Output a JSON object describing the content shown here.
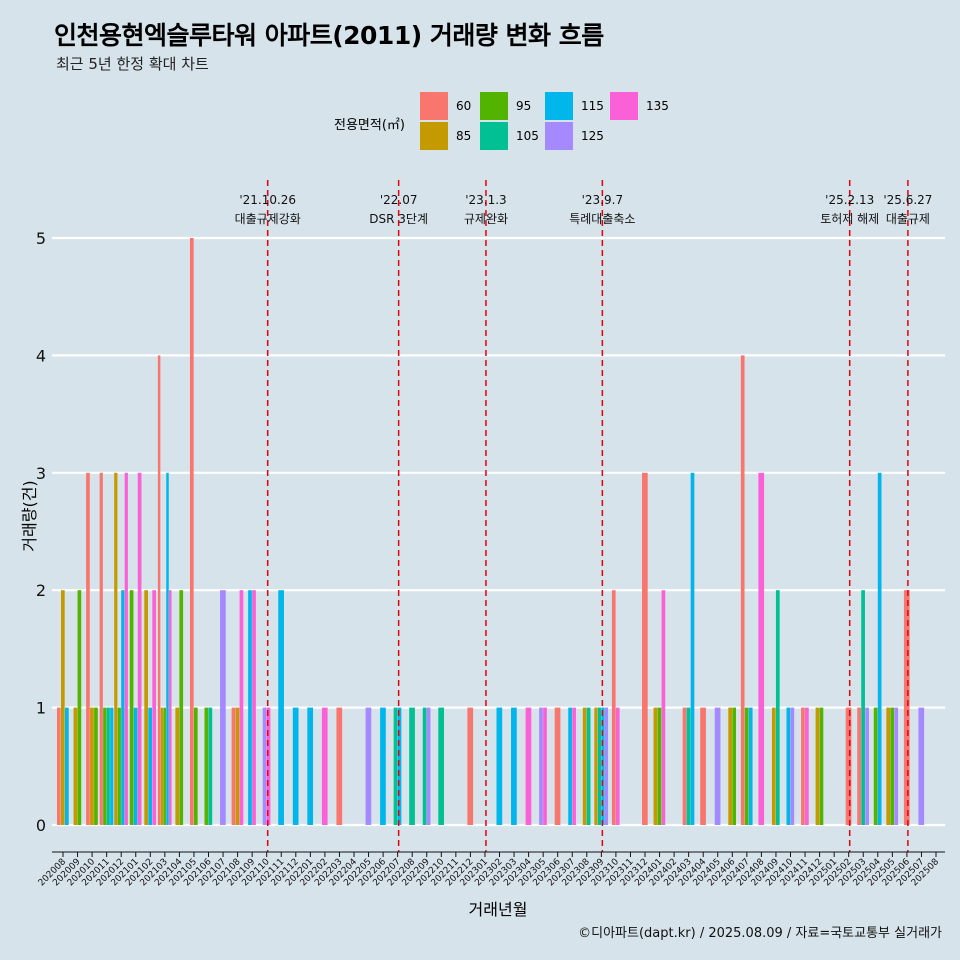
{
  "title": "인천용현엑슬루타워 아파트(2011) 거래량 변화 흐름",
  "subtitle": "최근 5년 한정 확대 차트",
  "caption": "©디아파트(dapt.kr) / 2025.08.09 / 자료=국토교통부 실거래가",
  "colors": {
    "60": "#f8766d",
    "85": "#c49a00",
    "95": "#53b400",
    "105": "#00c094",
    "115": "#00b6eb",
    "125": "#a58aff",
    "135": "#fb61d7",
    "event_line": "#e8000b",
    "background": "#d7e3ea"
  },
  "legend": {
    "title": "전용면적(㎡)",
    "items": [
      {
        "key": "60",
        "label": "60"
      },
      {
        "key": "85",
        "label": "85"
      },
      {
        "key": "95",
        "label": "95"
      },
      {
        "key": "105",
        "label": "105"
      },
      {
        "key": "115",
        "label": "115"
      },
      {
        "key": "125",
        "label": "125"
      },
      {
        "key": "135",
        "label": "135"
      }
    ]
  },
  "chart_data": {
    "type": "bar",
    "title": "인천용현엑슬루타워 아파트(2011) 거래량 변화 흐름",
    "subtitle": "최근 5년 한정 확대 차트",
    "xlabel": "거래년월",
    "ylabel": "거래량(건)",
    "ylim": [
      0,
      5
    ],
    "yticks": [
      0,
      1,
      2,
      3,
      4,
      5
    ],
    "categories": [
      "202008",
      "202009",
      "202010",
      "202011",
      "202012",
      "202101",
      "202102",
      "202103",
      "202104",
      "202105",
      "202106",
      "202107",
      "202108",
      "202109",
      "202110",
      "202111",
      "202112",
      "202201",
      "202202",
      "202203",
      "202204",
      "202205",
      "202206",
      "202207",
      "202208",
      "202209",
      "202210",
      "202211",
      "202212",
      "202301",
      "202302",
      "202303",
      "202304",
      "202305",
      "202306",
      "202307",
      "202308",
      "202309",
      "202310",
      "202311",
      "202312",
      "202401",
      "202402",
      "202403",
      "202404",
      "202405",
      "202406",
      "202407",
      "202408",
      "202409",
      "202410",
      "202411",
      "202412",
      "202501",
      "202502",
      "202503",
      "202504",
      "202505",
      "202506",
      "202507",
      "202508"
    ],
    "series": [
      {
        "name": "60",
        "values": [
          1,
          0,
          3,
          3,
          0,
          0,
          0,
          4,
          0,
          5,
          0,
          0,
          1,
          0,
          0,
          0,
          0,
          0,
          0,
          1,
          0,
          0,
          0,
          0,
          0,
          0,
          0,
          0,
          1,
          0,
          0,
          0,
          0,
          0,
          1,
          0,
          0,
          0,
          2,
          0,
          3,
          0,
          0,
          1,
          1,
          0,
          0,
          4,
          0,
          0,
          0,
          1,
          0,
          0,
          1,
          1,
          0,
          0,
          2,
          0,
          0
        ]
      },
      {
        "name": "85",
        "values": [
          2,
          1,
          1,
          0,
          3,
          0,
          2,
          1,
          1,
          0,
          0,
          0,
          1,
          0,
          0,
          0,
          0,
          0,
          0,
          0,
          0,
          0,
          0,
          0,
          0,
          0,
          0,
          0,
          0,
          0,
          0,
          0,
          0,
          0,
          0,
          0,
          1,
          1,
          0,
          0,
          0,
          1,
          0,
          0,
          0,
          0,
          1,
          0,
          0,
          1,
          0,
          0,
          1,
          0,
          0,
          0,
          0,
          1,
          0,
          0,
          0
        ]
      },
      {
        "name": "95",
        "values": [
          0,
          2,
          1,
          1,
          1,
          2,
          0,
          1,
          2,
          1,
          1,
          0,
          0,
          0,
          0,
          0,
          0,
          0,
          0,
          0,
          0,
          0,
          0,
          0,
          0,
          0,
          0,
          0,
          0,
          0,
          0,
          0,
          0,
          0,
          0,
          0,
          0,
          0,
          0,
          0,
          0,
          1,
          0,
          0,
          0,
          0,
          1,
          1,
          0,
          0,
          0,
          0,
          1,
          0,
          0,
          0,
          1,
          1,
          0,
          0,
          0
        ]
      },
      {
        "name": "105",
        "values": [
          0,
          0,
          0,
          1,
          0,
          0,
          0,
          0,
          0,
          0,
          1,
          0,
          0,
          0,
          0,
          0,
          0,
          0,
          0,
          0,
          0,
          0,
          0,
          1,
          1,
          1,
          1,
          0,
          0,
          0,
          0,
          0,
          0,
          0,
          0,
          0,
          1,
          1,
          0,
          0,
          0,
          0,
          0,
          1,
          0,
          0,
          0,
          0,
          0,
          2,
          0,
          0,
          0,
          0,
          0,
          2,
          0,
          0,
          0,
          0,
          0
        ]
      },
      {
        "name": "115",
        "values": [
          1,
          0,
          0,
          1,
          2,
          1,
          1,
          3,
          0,
          0,
          0,
          0,
          0,
          2,
          0,
          2,
          1,
          1,
          0,
          0,
          0,
          0,
          1,
          1,
          0,
          0,
          0,
          0,
          0,
          0,
          1,
          1,
          0,
          0,
          0,
          1,
          0,
          1,
          0,
          0,
          0,
          0,
          0,
          3,
          0,
          0,
          0,
          1,
          0,
          0,
          1,
          0,
          0,
          0,
          0,
          0,
          3,
          0,
          0,
          0,
          0
        ]
      },
      {
        "name": "125",
        "values": [
          0,
          0,
          0,
          0,
          0,
          0,
          0,
          0,
          0,
          0,
          0,
          2,
          0,
          0,
          1,
          0,
          0,
          0,
          0,
          0,
          0,
          1,
          0,
          0,
          0,
          1,
          0,
          0,
          0,
          0,
          0,
          0,
          0,
          1,
          0,
          0,
          0,
          1,
          0,
          0,
          0,
          0,
          0,
          0,
          0,
          1,
          0,
          0,
          0,
          0,
          1,
          0,
          0,
          0,
          0,
          1,
          0,
          1,
          0,
          1,
          0
        ]
      },
      {
        "name": "135",
        "values": [
          0,
          0,
          0,
          0,
          3,
          3,
          2,
          2,
          0,
          0,
          0,
          0,
          2,
          2,
          1,
          0,
          0,
          0,
          1,
          0,
          0,
          0,
          0,
          0,
          0,
          0,
          0,
          0,
          0,
          0,
          0,
          0,
          1,
          1,
          0,
          1,
          0,
          0,
          1,
          0,
          0,
          2,
          0,
          0,
          0,
          0,
          0,
          0,
          3,
          0,
          0,
          1,
          0,
          0,
          0,
          0,
          0,
          0,
          0,
          0,
          0
        ]
      }
    ],
    "events": [
      {
        "x": "202110",
        "date": "'21.10.26",
        "label": "대출규제강화"
      },
      {
        "x": "202207",
        "date": "'22.07",
        "label": "DSR 3단계"
      },
      {
        "x": "202301",
        "date": "'23.1.3",
        "label": "규제완화"
      },
      {
        "x": "202309",
        "date": "'23.9.7",
        "label": "특례대출축소"
      },
      {
        "x": "202502",
        "date": "'25.2.13",
        "label": "토허제 해제"
      },
      {
        "x": "202506",
        "date": "'25.6.27",
        "label": "대출규제"
      }
    ],
    "grid": true,
    "legend_position": "top"
  }
}
